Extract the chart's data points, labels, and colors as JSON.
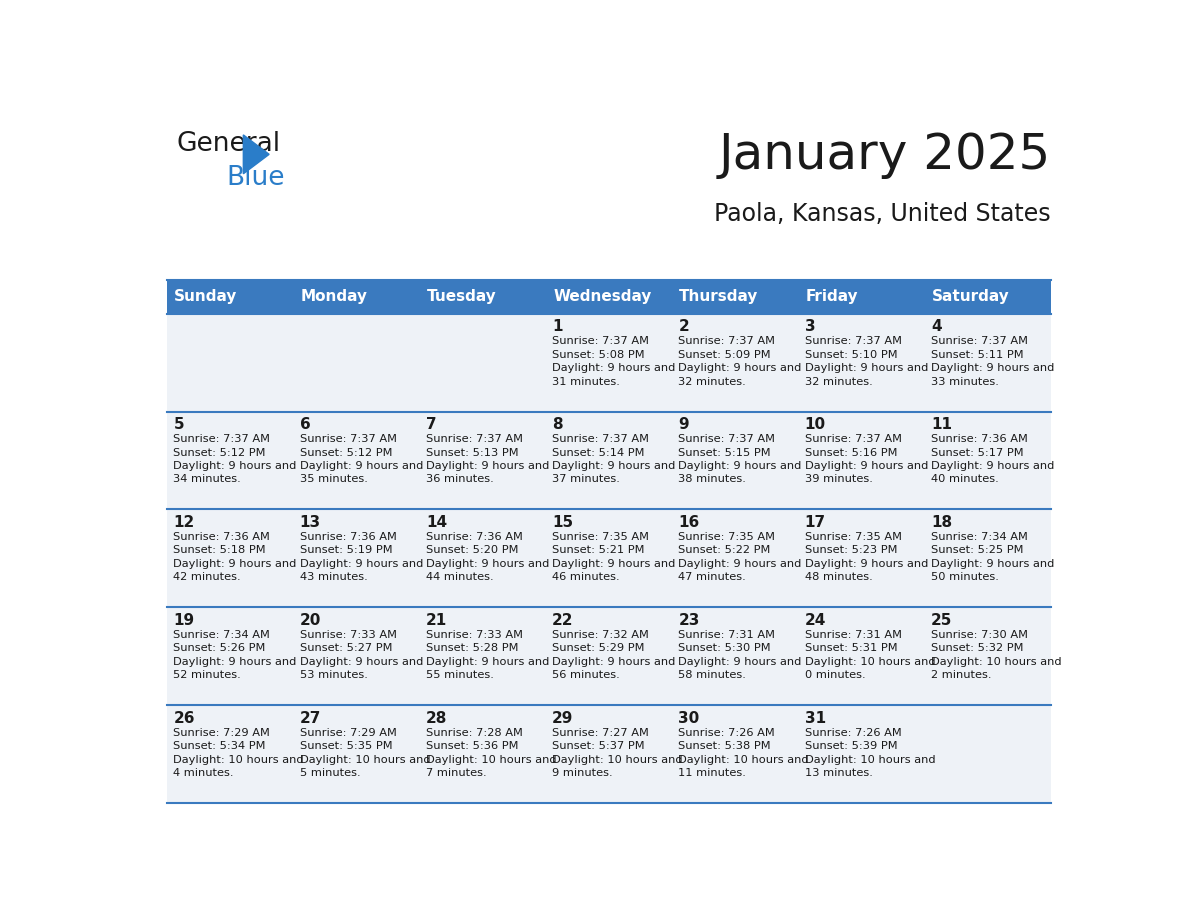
{
  "title": "January 2025",
  "subtitle": "Paola, Kansas, United States",
  "header_color": "#3a7abf",
  "header_text_color": "#ffffff",
  "cell_bg_color": "#eef2f7",
  "border_color": "#3a7abf",
  "days_of_week": [
    "Sunday",
    "Monday",
    "Tuesday",
    "Wednesday",
    "Thursday",
    "Friday",
    "Saturday"
  ],
  "calendar_data": [
    [
      {
        "day": "",
        "sunrise": "",
        "sunset": "",
        "daylight": ""
      },
      {
        "day": "",
        "sunrise": "",
        "sunset": "",
        "daylight": ""
      },
      {
        "day": "",
        "sunrise": "",
        "sunset": "",
        "daylight": ""
      },
      {
        "day": "1",
        "sunrise": "7:37 AM",
        "sunset": "5:08 PM",
        "daylight": "9 hours and 31 minutes."
      },
      {
        "day": "2",
        "sunrise": "7:37 AM",
        "sunset": "5:09 PM",
        "daylight": "9 hours and 32 minutes."
      },
      {
        "day": "3",
        "sunrise": "7:37 AM",
        "sunset": "5:10 PM",
        "daylight": "9 hours and 32 minutes."
      },
      {
        "day": "4",
        "sunrise": "7:37 AM",
        "sunset": "5:11 PM",
        "daylight": "9 hours and 33 minutes."
      }
    ],
    [
      {
        "day": "5",
        "sunrise": "7:37 AM",
        "sunset": "5:12 PM",
        "daylight": "9 hours and 34 minutes."
      },
      {
        "day": "6",
        "sunrise": "7:37 AM",
        "sunset": "5:12 PM",
        "daylight": "9 hours and 35 minutes."
      },
      {
        "day": "7",
        "sunrise": "7:37 AM",
        "sunset": "5:13 PM",
        "daylight": "9 hours and 36 minutes."
      },
      {
        "day": "8",
        "sunrise": "7:37 AM",
        "sunset": "5:14 PM",
        "daylight": "9 hours and 37 minutes."
      },
      {
        "day": "9",
        "sunrise": "7:37 AM",
        "sunset": "5:15 PM",
        "daylight": "9 hours and 38 minutes."
      },
      {
        "day": "10",
        "sunrise": "7:37 AM",
        "sunset": "5:16 PM",
        "daylight": "9 hours and 39 minutes."
      },
      {
        "day": "11",
        "sunrise": "7:36 AM",
        "sunset": "5:17 PM",
        "daylight": "9 hours and 40 minutes."
      }
    ],
    [
      {
        "day": "12",
        "sunrise": "7:36 AM",
        "sunset": "5:18 PM",
        "daylight": "9 hours and 42 minutes."
      },
      {
        "day": "13",
        "sunrise": "7:36 AM",
        "sunset": "5:19 PM",
        "daylight": "9 hours and 43 minutes."
      },
      {
        "day": "14",
        "sunrise": "7:36 AM",
        "sunset": "5:20 PM",
        "daylight": "9 hours and 44 minutes."
      },
      {
        "day": "15",
        "sunrise": "7:35 AM",
        "sunset": "5:21 PM",
        "daylight": "9 hours and 46 minutes."
      },
      {
        "day": "16",
        "sunrise": "7:35 AM",
        "sunset": "5:22 PM",
        "daylight": "9 hours and 47 minutes."
      },
      {
        "day": "17",
        "sunrise": "7:35 AM",
        "sunset": "5:23 PM",
        "daylight": "9 hours and 48 minutes."
      },
      {
        "day": "18",
        "sunrise": "7:34 AM",
        "sunset": "5:25 PM",
        "daylight": "9 hours and 50 minutes."
      }
    ],
    [
      {
        "day": "19",
        "sunrise": "7:34 AM",
        "sunset": "5:26 PM",
        "daylight": "9 hours and 52 minutes."
      },
      {
        "day": "20",
        "sunrise": "7:33 AM",
        "sunset": "5:27 PM",
        "daylight": "9 hours and 53 minutes."
      },
      {
        "day": "21",
        "sunrise": "7:33 AM",
        "sunset": "5:28 PM",
        "daylight": "9 hours and 55 minutes."
      },
      {
        "day": "22",
        "sunrise": "7:32 AM",
        "sunset": "5:29 PM",
        "daylight": "9 hours and 56 minutes."
      },
      {
        "day": "23",
        "sunrise": "7:31 AM",
        "sunset": "5:30 PM",
        "daylight": "9 hours and 58 minutes."
      },
      {
        "day": "24",
        "sunrise": "7:31 AM",
        "sunset": "5:31 PM",
        "daylight": "10 hours and 0 minutes."
      },
      {
        "day": "25",
        "sunrise": "7:30 AM",
        "sunset": "5:32 PM",
        "daylight": "10 hours and 2 minutes."
      }
    ],
    [
      {
        "day": "26",
        "sunrise": "7:29 AM",
        "sunset": "5:34 PM",
        "daylight": "10 hours and 4 minutes."
      },
      {
        "day": "27",
        "sunrise": "7:29 AM",
        "sunset": "5:35 PM",
        "daylight": "10 hours and 5 minutes."
      },
      {
        "day": "28",
        "sunrise": "7:28 AM",
        "sunset": "5:36 PM",
        "daylight": "10 hours and 7 minutes."
      },
      {
        "day": "29",
        "sunrise": "7:27 AM",
        "sunset": "5:37 PM",
        "daylight": "10 hours and 9 minutes."
      },
      {
        "day": "30",
        "sunrise": "7:26 AM",
        "sunset": "5:38 PM",
        "daylight": "10 hours and 11 minutes."
      },
      {
        "day": "31",
        "sunrise": "7:26 AM",
        "sunset": "5:39 PM",
        "daylight": "10 hours and 13 minutes."
      },
      {
        "day": "",
        "sunrise": "",
        "sunset": "",
        "daylight": ""
      }
    ]
  ]
}
